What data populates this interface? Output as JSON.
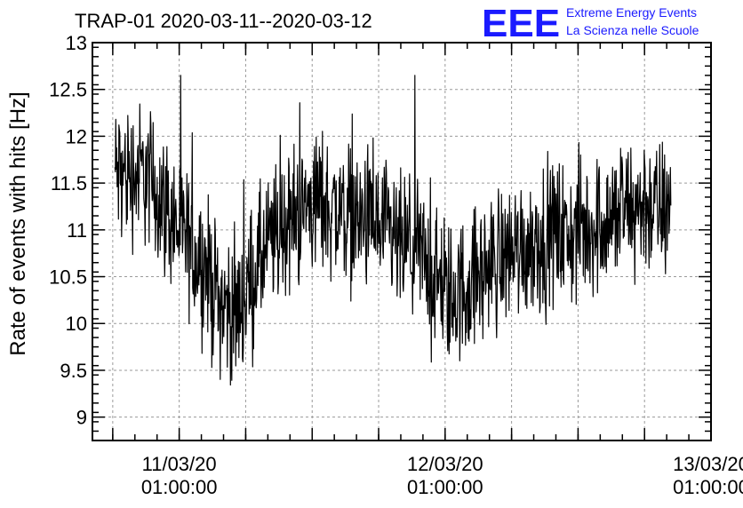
{
  "logo": {
    "letters": "EEE",
    "line1": "Extreme Energy Events",
    "line2": "La Scienza nelle Scuole"
  },
  "chart_data": {
    "type": "line",
    "title": "TRAP-01 2020-03-11--2020-03-12",
    "ylabel": "Rate of events with hits [Hz]",
    "xlabel": "",
    "ylim": [
      8.75,
      13
    ],
    "yticks": [
      9,
      9.5,
      10,
      10.5,
      11,
      11.5,
      12,
      12.5,
      13
    ],
    "xlim": [
      "2020-03-10T17:10",
      "2020-03-13T01:00"
    ],
    "xticks": [
      {
        "date": "11/03/20",
        "time": "01:00:00",
        "x": "2020-03-11T01:00"
      },
      {
        "date": "12/03/20",
        "time": "01:00:00",
        "x": "2020-03-12T01:00"
      },
      {
        "date": "13/03/20",
        "time": "01:00:00",
        "x": "2020-03-13T01:00"
      }
    ],
    "grid": true,
    "color": "#000000",
    "series": [
      {
        "x": [
          "2020-03-10T22:00",
          "2020-03-10T23:00",
          "2020-03-11T00:00",
          "2020-03-11T01:00",
          "2020-03-11T02:00",
          "2020-03-11T03:00",
          "2020-03-11T04:00",
          "2020-03-11T05:00",
          "2020-03-11T06:00",
          "2020-03-11T07:00",
          "2020-03-11T08:00",
          "2020-03-11T09:00",
          "2020-03-11T10:00",
          "2020-03-11T11:00",
          "2020-03-11T12:00",
          "2020-03-11T13:00",
          "2020-03-11T14:00",
          "2020-03-11T15:00",
          "2020-03-11T16:00",
          "2020-03-11T17:00",
          "2020-03-11T18:00",
          "2020-03-11T19:00",
          "2020-03-11T20:00",
          "2020-03-11T21:00",
          "2020-03-11T22:00",
          "2020-03-11T23:00",
          "2020-03-12T00:00",
          "2020-03-12T01:00",
          "2020-03-12T02:00",
          "2020-03-12T03:00",
          "2020-03-12T04:00",
          "2020-03-12T05:00",
          "2020-03-12T06:00",
          "2020-03-12T07:00",
          "2020-03-12T08:00",
          "2020-03-12T09:00",
          "2020-03-12T10:00",
          "2020-03-12T11:00",
          "2020-03-12T12:00",
          "2020-03-12T13:00",
          "2020-03-12T14:00",
          "2020-03-12T15:00",
          "2020-03-12T16:00",
          "2020-03-12T17:00",
          "2020-03-12T18:00",
          "2020-03-12T19:00",
          "2020-03-12T20:00",
          "2020-03-12T21:00"
        ],
        "values": [
          11.6,
          11.4,
          11.2,
          11.0,
          10.8,
          10.7,
          10.4,
          10.2,
          10.1,
          10.3,
          10.6,
          10.8,
          11.0,
          11.1,
          11.2,
          11.3,
          11.3,
          11.2,
          11.2,
          11.1,
          11.1,
          11.0,
          10.9,
          10.8,
          10.8,
          10.7,
          10.5,
          10.3,
          10.3,
          10.4,
          10.5,
          10.6,
          10.7,
          10.8,
          10.8,
          10.9,
          10.9,
          11.0,
          10.9,
          11.0,
          11.0,
          11.1,
          11.1,
          11.2,
          11.2,
          11.3,
          11.2,
          11.2
        ]
      }
    ]
  }
}
